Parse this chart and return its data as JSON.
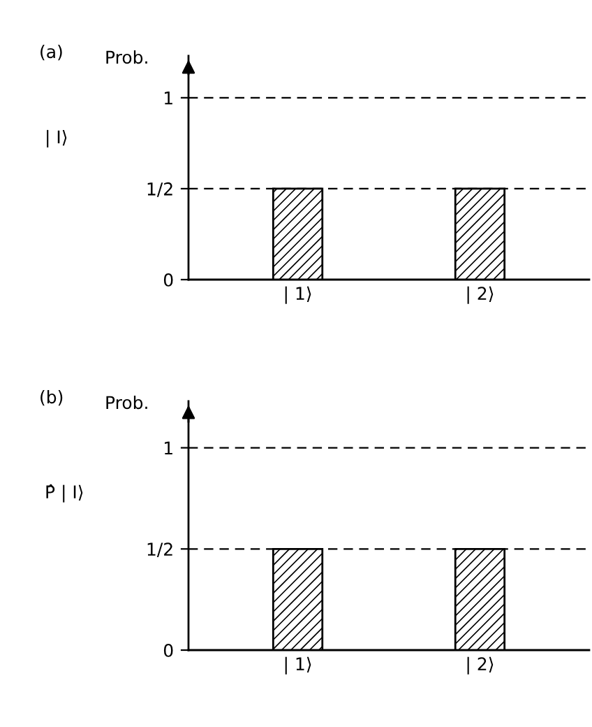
{
  "chart_data": [
    {
      "type": "bar",
      "title": "(a)",
      "ylabel": "Prob.",
      "annotations": [
        "| I⟩"
      ],
      "categories": [
        "| 1⟩",
        "| 2⟩"
      ],
      "values": [
        0.5,
        0.5
      ],
      "color": "#000000",
      "ylim": [
        0,
        1.23
      ],
      "yticks": [
        0,
        {
          "value": 0.5,
          "label": "1/2"
        },
        1
      ],
      "grid": "y",
      "line_style": "dashed"
    },
    {
      "type": "bar",
      "title": "(b)",
      "ylabel": "Prob.",
      "annotations": [
        "P̂ | I⟩"
      ],
      "categories": [
        "| 1⟩",
        "| 2⟩"
      ],
      "values": [
        0.5,
        0.5
      ],
      "color": "#000000",
      "ylim": [
        0,
        1.23
      ],
      "yticks": [
        0,
        {
          "value": 0.5,
          "label": "1/2"
        },
        1
      ],
      "grid": "y",
      "line_style": "dashed"
    }
  ]
}
